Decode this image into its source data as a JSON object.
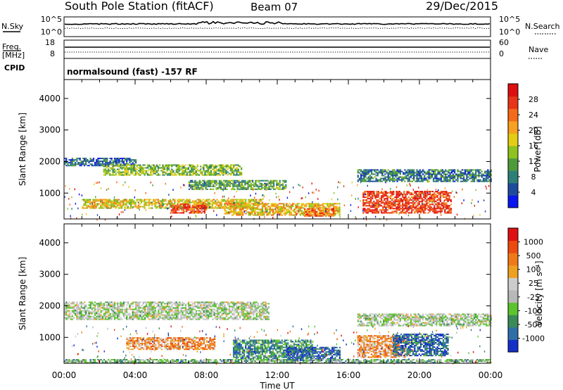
{
  "header": {
    "station": "South Pole Station (fitACF)",
    "beam": "Beam 07",
    "date": "29/Dec/2015"
  },
  "strip_labels": {
    "nsky": "N.Sky",
    "freq_line1": "Freq.",
    "freq_line2": "[MHz]",
    "cpid": "CPID",
    "nsearch": "N.Search",
    "nave": "Nave",
    "nsky_ticks": [
      "10^5",
      "10^0"
    ],
    "nsearch_ticks": [
      "10^5",
      "10^0"
    ],
    "freq_ticks": [
      "18",
      "8"
    ],
    "nave_ticks": [
      "60",
      "0"
    ],
    "cpid_text": "normalsound (fast) -157 RF"
  },
  "chart_data": [
    {
      "type": "heatmap",
      "panel": "power",
      "ylabel": "Slant Range [km]",
      "xlabel": "",
      "ylim": [
        180,
        4600
      ],
      "yticks": [
        "1000",
        "2000",
        "3000",
        "4000"
      ],
      "xlim_hours": [
        0,
        24
      ],
      "xticks": [
        "00:00",
        "04:00",
        "08:00",
        "12:00",
        "16:00",
        "20:00",
        "00:00"
      ],
      "colorbar": {
        "label": "Power [dB]",
        "ticks": [
          "4",
          "8",
          "12",
          "16",
          "20",
          "24",
          "28"
        ],
        "colors": [
          "#0a16f0",
          "#1e4a9e",
          "#2e7f78",
          "#4f9a3a",
          "#8ec21e",
          "#e4cc12",
          "#f8a020",
          "#f46a18",
          "#e83418",
          "#dd0f0f"
        ]
      },
      "bands": [
        {
          "t0": 0.0,
          "t1": 4.0,
          "r0": 1850,
          "r1": 2100,
          "level": 0.2
        },
        {
          "t0": 2.2,
          "t1": 10.0,
          "r0": 1550,
          "r1": 1900,
          "level": 0.42
        },
        {
          "t0": 1.0,
          "t1": 11.2,
          "r0": 500,
          "r1": 800,
          "level": 0.55
        },
        {
          "t0": 7.0,
          "t1": 12.5,
          "r0": 1100,
          "r1": 1400,
          "level": 0.35
        },
        {
          "t0": 9.0,
          "t1": 15.5,
          "r0": 280,
          "r1": 650,
          "level": 0.6
        },
        {
          "t0": 13.5,
          "t1": 15.2,
          "r0": 250,
          "r1": 480,
          "level": 0.75
        },
        {
          "t0": 16.8,
          "t1": 21.8,
          "r0": 350,
          "r1": 1050,
          "level": 0.85
        },
        {
          "t0": 16.5,
          "t1": 24.0,
          "r0": 1350,
          "r1": 1750,
          "level": 0.25
        },
        {
          "t0": 6.0,
          "t1": 8.0,
          "r0": 350,
          "r1": 650,
          "level": 0.82
        }
      ]
    },
    {
      "type": "heatmap",
      "panel": "velocity",
      "ylabel": "Slant Range [km]",
      "xlabel": "Time UT",
      "ylim": [
        180,
        4600
      ],
      "yticks": [
        "1000",
        "2000",
        "3000",
        "4000"
      ],
      "xlim_hours": [
        0,
        24
      ],
      "xticks": [
        "00:00",
        "04:00",
        "08:00",
        "12:00",
        "16:00",
        "20:00",
        "00:00"
      ],
      "colorbar": {
        "label": "Velocity [m s⁻¹]",
        "ticks": [
          "1000",
          "500",
          "100",
          "25",
          "-25",
          "-100",
          "-500",
          "-1000"
        ],
        "colors": [
          "#1530c8",
          "#2e6fa8",
          "#3a8a5a",
          "#5cc42e",
          "#b8b8b8",
          "#cccccc",
          "#f0a020",
          "#f07a18",
          "#ee4a10",
          "#e01010"
        ]
      },
      "bands": [
        {
          "t0": 0.0,
          "t1": 11.5,
          "r0": 1550,
          "r1": 2100,
          "level": 0.45
        },
        {
          "t0": 3.5,
          "t1": 8.5,
          "r0": 600,
          "r1": 1000,
          "level": 0.7
        },
        {
          "t0": 9.5,
          "t1": 14.0,
          "r0": 300,
          "r1": 900,
          "level": 0.25
        },
        {
          "t0": 12.5,
          "t1": 15.5,
          "r0": 250,
          "r1": 700,
          "level": 0.12
        },
        {
          "t0": 16.5,
          "t1": 19.2,
          "r0": 350,
          "r1": 1050,
          "level": 0.7
        },
        {
          "t0": 18.5,
          "t1": 21.6,
          "r0": 400,
          "r1": 1100,
          "level": 0.15
        },
        {
          "t0": 16.5,
          "t1": 24.0,
          "r0": 1350,
          "r1": 1750,
          "level": 0.45
        },
        {
          "t0": 0.0,
          "t1": 24.0,
          "r0": 180,
          "r1": 300,
          "level": 0.35
        }
      ]
    }
  ]
}
